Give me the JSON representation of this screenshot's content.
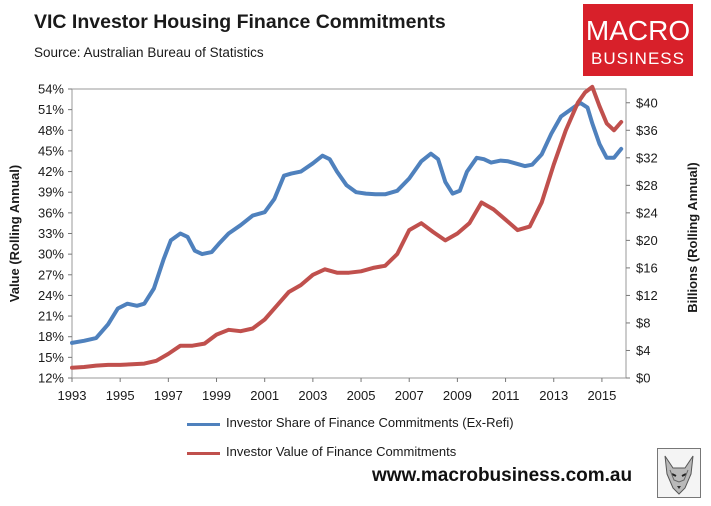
{
  "header": {
    "title": "VIC Investor Housing Finance Commitments",
    "subtitle": "Source: Australian Bureau of Statistics"
  },
  "logo": {
    "line1": "MACRO",
    "line2": "BUSINESS",
    "color": "#d8202a"
  },
  "footer": {
    "website": "www.macrobusiness.com.au"
  },
  "chart_data": {
    "type": "line",
    "title": "VIC Investor Housing Finance Commitments",
    "xlabel": "",
    "ylabel": "Value (Rolling Annual)",
    "y2label": "Billions (Rolling Annual)",
    "xlim": [
      1993,
      2016
    ],
    "ylim": [
      12,
      54
    ],
    "y2lim": [
      0,
      42
    ],
    "x_ticks": [
      1993,
      1995,
      1997,
      1999,
      2001,
      2003,
      2005,
      2007,
      2009,
      2011,
      2013,
      2015
    ],
    "y_ticks": [
      "12%",
      "15%",
      "18%",
      "21%",
      "24%",
      "27%",
      "30%",
      "33%",
      "36%",
      "39%",
      "42%",
      "45%",
      "48%",
      "51%",
      "54%"
    ],
    "y2_ticks": [
      "$0",
      "$4",
      "$8",
      "$12",
      "$16",
      "$20",
      "$24",
      "$28",
      "$32",
      "$36",
      "$40"
    ],
    "legend_position": "bottom",
    "series": [
      {
        "name": "Investor Share of Finance Commitments (Ex-Refi)",
        "axis": "left",
        "color": "#4f81bd",
        "x": [
          1993.0,
          1993.5,
          1994.0,
          1994.5,
          1994.9,
          1995.3,
          1995.7,
          1996.0,
          1996.4,
          1996.8,
          1997.1,
          1997.5,
          1997.8,
          1998.1,
          1998.4,
          1998.8,
          1999.1,
          1999.5,
          2000.0,
          2000.5,
          2001.0,
          2001.4,
          2001.8,
          2002.1,
          2002.5,
          2003.0,
          2003.4,
          2003.7,
          2004.0,
          2004.4,
          2004.8,
          2005.2,
          2005.6,
          2006.0,
          2006.5,
          2007.0,
          2007.5,
          2007.9,
          2008.2,
          2008.5,
          2008.8,
          2009.1,
          2009.4,
          2009.8,
          2010.1,
          2010.4,
          2010.8,
          2011.1,
          2011.4,
          2011.8,
          2012.1,
          2012.5,
          2012.9,
          2013.3,
          2013.7,
          2014.1,
          2014.4,
          2014.6,
          2014.9,
          2015.2,
          2015.5,
          2015.8
        ],
        "values": [
          17.1,
          17.4,
          17.8,
          19.8,
          22.1,
          22.8,
          22.5,
          22.8,
          25.0,
          29.2,
          32.0,
          33.0,
          32.5,
          30.5,
          30.0,
          30.3,
          31.5,
          33.0,
          34.2,
          35.6,
          36.1,
          38.0,
          41.4,
          41.7,
          42.0,
          43.2,
          44.3,
          43.8,
          42.0,
          40.0,
          39.0,
          38.8,
          38.7,
          38.7,
          39.2,
          41.0,
          43.5,
          44.6,
          43.8,
          40.5,
          38.8,
          39.2,
          42.0,
          44.0,
          43.8,
          43.3,
          43.6,
          43.5,
          43.2,
          42.8,
          43.0,
          44.5,
          47.5,
          50.0,
          51.0,
          52.0,
          51.3,
          49.0,
          46.0,
          44.0,
          44.0,
          45.3
        ]
      },
      {
        "name": "Investor Value of Finance Commitments",
        "axis": "right",
        "color": "#c0504d",
        "x": [
          1993.0,
          1993.5,
          1994.0,
          1994.5,
          1995.0,
          1995.5,
          1996.0,
          1996.5,
          1997.0,
          1997.5,
          1998.0,
          1998.5,
          1999.0,
          1999.5,
          2000.0,
          2000.5,
          2001.0,
          2001.5,
          2002.0,
          2002.5,
          2003.0,
          2003.5,
          2004.0,
          2004.5,
          2005.0,
          2005.5,
          2006.0,
          2006.5,
          2007.0,
          2007.5,
          2008.0,
          2008.5,
          2009.0,
          2009.5,
          2010.0,
          2010.5,
          2011.0,
          2011.5,
          2012.0,
          2012.5,
          2013.0,
          2013.5,
          2014.0,
          2014.3,
          2014.6,
          2014.9,
          2015.2,
          2015.5,
          2015.8
        ],
        "values": [
          1.5,
          1.6,
          1.8,
          1.9,
          1.9,
          2.0,
          2.1,
          2.5,
          3.5,
          4.7,
          4.7,
          5.0,
          6.3,
          7.0,
          6.8,
          7.2,
          8.5,
          10.5,
          12.5,
          13.5,
          15.0,
          15.8,
          15.3,
          15.3,
          15.5,
          16.0,
          16.3,
          18.0,
          21.5,
          22.5,
          21.2,
          20.0,
          21.0,
          22.5,
          25.5,
          24.5,
          23.0,
          21.5,
          22.0,
          25.5,
          31.0,
          36.0,
          40.0,
          41.5,
          42.3,
          39.5,
          37.0,
          36.0,
          37.2
        ]
      }
    ]
  }
}
